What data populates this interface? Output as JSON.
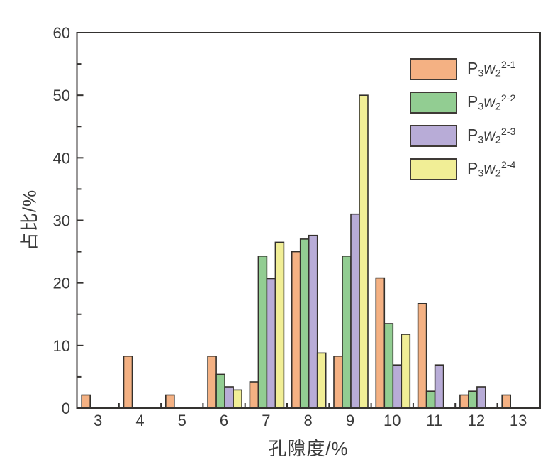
{
  "chart_data": {
    "type": "bar",
    "title": "",
    "xlabel": "孔隙度/%",
    "ylabel": "占比/%",
    "xlim": [
      2.5,
      13.52
    ],
    "ylim": [
      0,
      60
    ],
    "grid": false,
    "legend_position": "top-right",
    "x_tick_labels": [
      3,
      4,
      5,
      6,
      7,
      8,
      9,
      10,
      11,
      12,
      13
    ],
    "x_minor_ticks": [
      3.5,
      4.5,
      5.5,
      6.5,
      7.5,
      8.5,
      9.5,
      10.5,
      11.5,
      12.5
    ],
    "y_tick_labels": [
      0,
      10,
      20,
      30,
      40,
      50,
      60
    ],
    "y_minor_ticks": [
      5,
      15,
      25,
      35,
      45,
      55
    ],
    "categories": [
      3,
      4,
      5,
      6,
      7,
      8,
      9,
      10,
      11,
      12,
      13
    ],
    "series": [
      {
        "name": "P3w2 2-1",
        "label_parts": {
          "base": "P",
          "sub1": "3",
          "mid": "w",
          "sub2": "2",
          "sup": "2-1"
        },
        "color": "#F4B183",
        "values": [
          2.1,
          8.3,
          2.1,
          8.3,
          4.2,
          25.0,
          8.3,
          20.8,
          16.7,
          2.1,
          2.1
        ]
      },
      {
        "name": "P3w2 2-2",
        "label_parts": {
          "base": "P",
          "sub1": "3",
          "mid": "w",
          "sub2": "2",
          "sup": "2-2"
        },
        "color": "#92CD92",
        "values": [
          null,
          null,
          null,
          5.4,
          24.3,
          27.0,
          24.3,
          13.5,
          2.7,
          2.7,
          null
        ]
      },
      {
        "name": "P3w2 2-3",
        "label_parts": {
          "base": "P",
          "sub1": "3",
          "mid": "w",
          "sub2": "2",
          "sup": "2-3"
        },
        "color": "#B8ACD7",
        "values": [
          null,
          null,
          null,
          3.4,
          20.7,
          27.6,
          31.0,
          6.9,
          6.9,
          3.4,
          null
        ]
      },
      {
        "name": "P3w2 2-4",
        "label_parts": {
          "base": "P",
          "sub1": "3",
          "mid": "w",
          "sub2": "2",
          "sup": "2-4"
        },
        "color": "#F1EE96",
        "values": [
          null,
          null,
          null,
          2.9,
          26.5,
          8.8,
          50.0,
          11.8,
          null,
          null,
          null
        ]
      }
    ],
    "colors": {
      "frame": "#343230",
      "bar_outline": "#33302c",
      "text": "#3a3a3a"
    }
  }
}
